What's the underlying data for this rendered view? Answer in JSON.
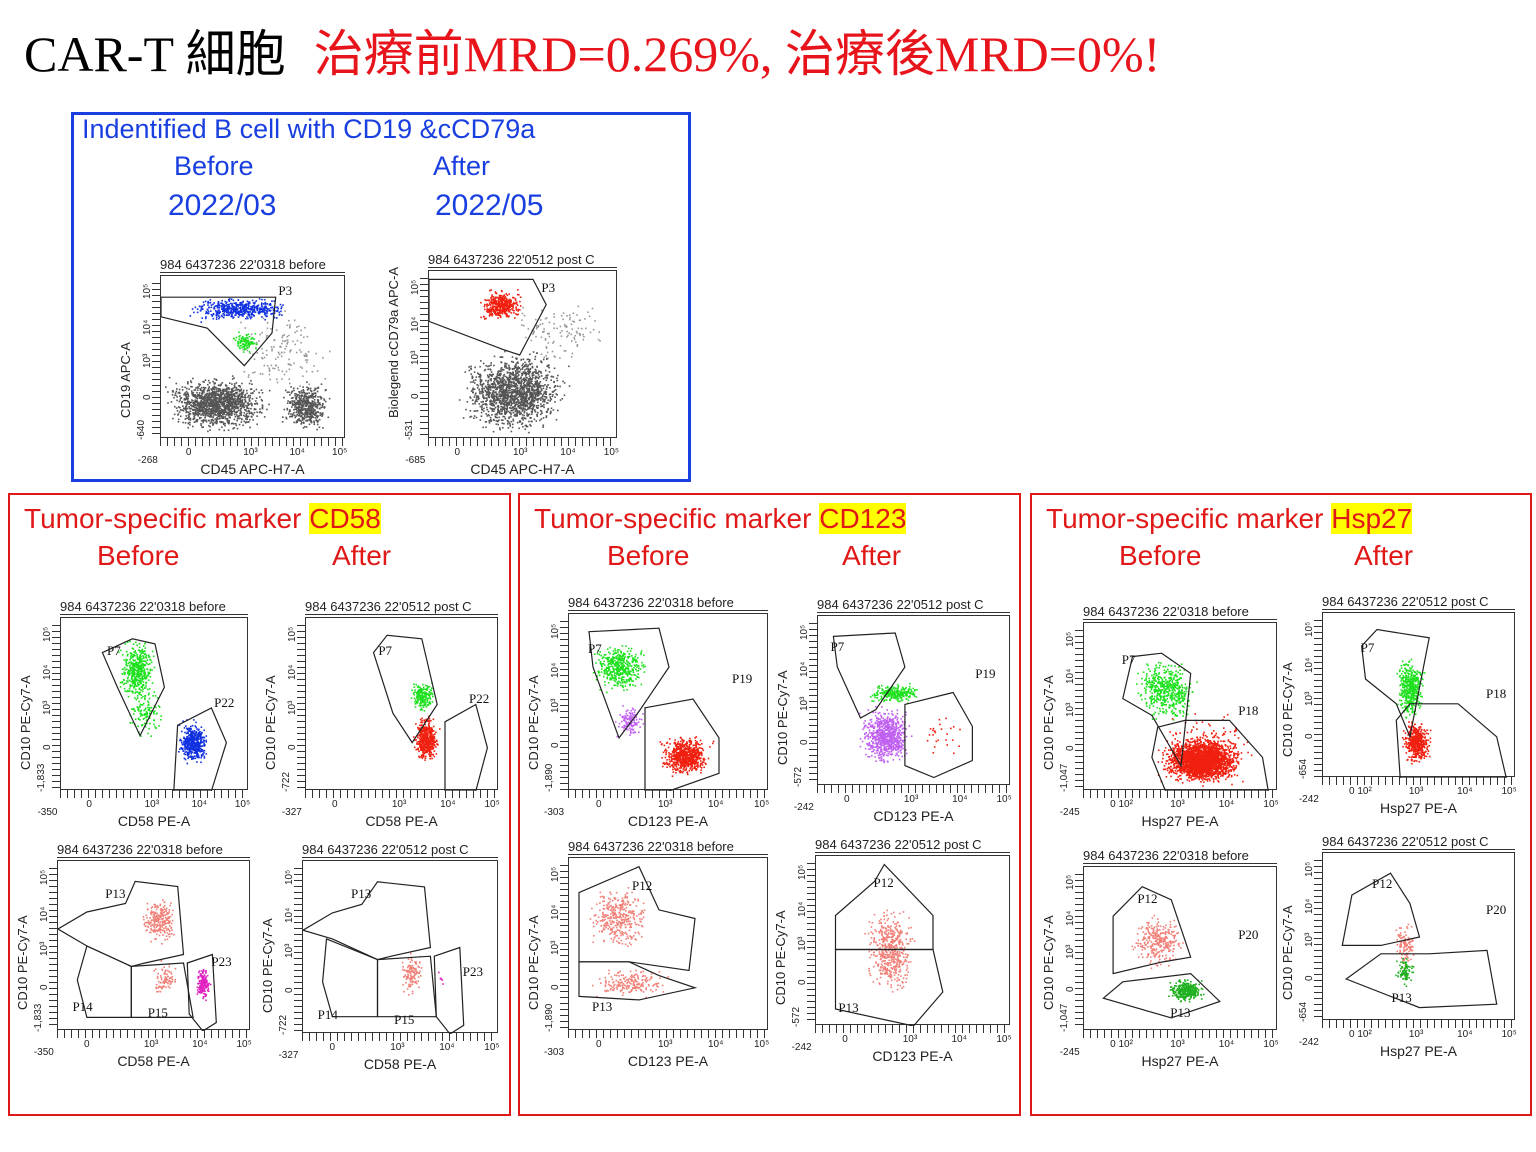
{
  "title": {
    "prefix": "CAR-T 細胞",
    "highlight": "治療前MRD=0.269%, 治療後MRD=0%!"
  },
  "bcell": {
    "title": "Indentified B cell with  CD19 &cCD79a",
    "before_label": "Before",
    "after_label": "After",
    "before_date": "2022/03",
    "after_date": "2022/05",
    "plots": [
      {
        "header": "984 6437236 22'0318 before",
        "xlabel": "CD45 APC-H7-A",
        "ylabel": "CD19 APC-A",
        "x_ticks": [
          "-268",
          "0",
          "10³",
          "10⁴",
          "10⁵"
        ],
        "y_ticks": [
          "-640",
          "0",
          "10³",
          "10⁴",
          "10⁵"
        ],
        "gates": [
          "P3"
        ]
      },
      {
        "header": "984 6437236 22'0512 post C",
        "xlabel": "CD45 APC-H7-A",
        "ylabel": "Biolegend cCD79a APC-A",
        "x_ticks": [
          "-685",
          "0",
          "10³",
          "10⁴",
          "10⁵"
        ],
        "y_ticks": [
          "-531",
          "0",
          "10³",
          "10⁴",
          "10⁵"
        ],
        "gates": [
          "P3"
        ]
      }
    ]
  },
  "markers": [
    {
      "prefix": "Tumor-specific marker ",
      "marker": "CD58",
      "before": "Before",
      "after": "After",
      "plots": [
        {
          "header": "984 6437236 22'0318 before",
          "xlabel": "CD58 PE-A",
          "ylabel": "CD10 PE-Cy7-A",
          "x_ticks": [
            "-350",
            "0",
            "10³",
            "10⁴",
            "10⁵"
          ],
          "y_ticks": [
            "-1,833",
            "0",
            "10³",
            "10⁴",
            "10⁵"
          ],
          "gates": [
            "P7",
            "P22"
          ]
        },
        {
          "header": "984 6437236 22'0512 post C",
          "xlabel": "CD58 PE-A",
          "ylabel": "CD10 PE-Cy7-A",
          "x_ticks": [
            "-327",
            "0",
            "10³",
            "10⁴",
            "10⁵"
          ],
          "y_ticks": [
            "-722",
            "0",
            "10³",
            "10⁴",
            "10⁵"
          ],
          "gates": [
            "P7",
            "P22"
          ]
        },
        {
          "header": "984 6437236 22'0318 before",
          "xlabel": "CD58 PE-A",
          "ylabel": "CD10 PE-Cy7-A",
          "x_ticks": [
            "-350",
            "0",
            "10³",
            "10⁴",
            "10⁵"
          ],
          "y_ticks": [
            "-1,833",
            "0",
            "10³",
            "10⁴",
            "10⁵"
          ],
          "gates": [
            "P13",
            "P14",
            "P15",
            "P23"
          ]
        },
        {
          "header": "984 6437236 22'0512 post C",
          "xlabel": "CD58 PE-A",
          "ylabel": "CD10 PE-Cy7-A",
          "x_ticks": [
            "-327",
            "0",
            "10³",
            "10⁴",
            "10⁵"
          ],
          "y_ticks": [
            "-722",
            "0",
            "10³",
            "10⁴",
            "10⁵"
          ],
          "gates": [
            "P13",
            "P14",
            "P15",
            "P23"
          ]
        }
      ]
    },
    {
      "prefix": "Tumor-specific marker ",
      "marker": "CD123",
      "before": "Before",
      "after": "After",
      "plots": [
        {
          "header": "984 6437236 22'0318 before",
          "xlabel": "CD123 PE-A",
          "ylabel": "CD10 PE-Cy7-A",
          "x_ticks": [
            "-303",
            "0",
            "10³",
            "10⁴",
            "10⁵"
          ],
          "y_ticks": [
            "-1,890",
            "0",
            "10³",
            "10⁴",
            "10⁵"
          ],
          "gates": [
            "P7",
            "P19"
          ]
        },
        {
          "header": "984 6437236 22'0512 post C",
          "xlabel": "CD123 PE-A",
          "ylabel": "CD10 PE-Cy7-A",
          "x_ticks": [
            "-242",
            "0",
            "10³",
            "10⁴",
            "10⁵"
          ],
          "y_ticks": [
            "-572",
            "0",
            "10³",
            "10⁴",
            "10⁵"
          ],
          "gates": [
            "P7",
            "P19"
          ]
        },
        {
          "header": "984 6437236 22'0318 before",
          "xlabel": "CD123 PE-A",
          "ylabel": "CD10 PE-Cy7-A",
          "x_ticks": [
            "-303",
            "0",
            "10³",
            "10⁴",
            "10⁵"
          ],
          "y_ticks": [
            "-1,890",
            "0",
            "10³",
            "10⁴",
            "10⁵"
          ],
          "gates": [
            "P12",
            "P13"
          ]
        },
        {
          "header": "984 6437236 22'0512 post C",
          "xlabel": "CD123 PE-A",
          "ylabel": "CD10 PE-Cy7-A",
          "x_ticks": [
            "-242",
            "0",
            "10³",
            "10⁴",
            "10⁵"
          ],
          "y_ticks": [
            "-572",
            "0",
            "10³",
            "10⁴",
            "10⁵"
          ],
          "gates": [
            "P12",
            "P13"
          ]
        }
      ]
    },
    {
      "prefix": "Tumor-specific marker ",
      "marker": "Hsp27",
      "before": "Before",
      "after": "After",
      "plots": [
        {
          "header": "984 6437236 22'0318 before",
          "xlabel": "Hsp27 PE-A",
          "ylabel": "CD10 PE-Cy7-A",
          "x_ticks": [
            "-245",
            "0 10²",
            "10³",
            "10⁴",
            "10⁵"
          ],
          "y_ticks": [
            "-1,047",
            "0",
            "10³",
            "10⁴",
            "10⁵"
          ],
          "gates": [
            "P7",
            "P18"
          ]
        },
        {
          "header": "984 6437236 22'0512 post C",
          "xlabel": "Hsp27 PE-A",
          "ylabel": "CD10 PE-Cy7-A",
          "x_ticks": [
            "-242",
            "0 10²",
            "10³",
            "10⁴",
            "10⁵"
          ],
          "y_ticks": [
            "-654",
            "0",
            "10³",
            "10⁴",
            "10⁵"
          ],
          "gates": [
            "P7",
            "P18"
          ]
        },
        {
          "header": "984 6437236 22'0318 before",
          "xlabel": "Hsp27 PE-A",
          "ylabel": "CD10 PE-Cy7-A",
          "x_ticks": [
            "-245",
            "0 10²",
            "10³",
            "10⁴",
            "10⁵"
          ],
          "y_ticks": [
            "-1,047",
            "0",
            "10³",
            "10⁴",
            "10⁵"
          ],
          "gates": [
            "P12",
            "P20",
            "P13"
          ]
        },
        {
          "header": "984 6437236 22'0512 post C",
          "xlabel": "Hsp27 PE-A",
          "ylabel": "CD10 PE-Cy7-A",
          "x_ticks": [
            "-242",
            "0 10²",
            "10³",
            "10⁴",
            "10⁵"
          ],
          "y_ticks": [
            "-654",
            "0",
            "10³",
            "10⁴",
            "10⁵"
          ],
          "gates": [
            "P12",
            "P20",
            "P13"
          ]
        }
      ]
    }
  ],
  "colors": {
    "title_red": "#e8141c",
    "blue": "#1a3fe0",
    "panel_red": "#e01818",
    "highlight": "#ffff00"
  }
}
